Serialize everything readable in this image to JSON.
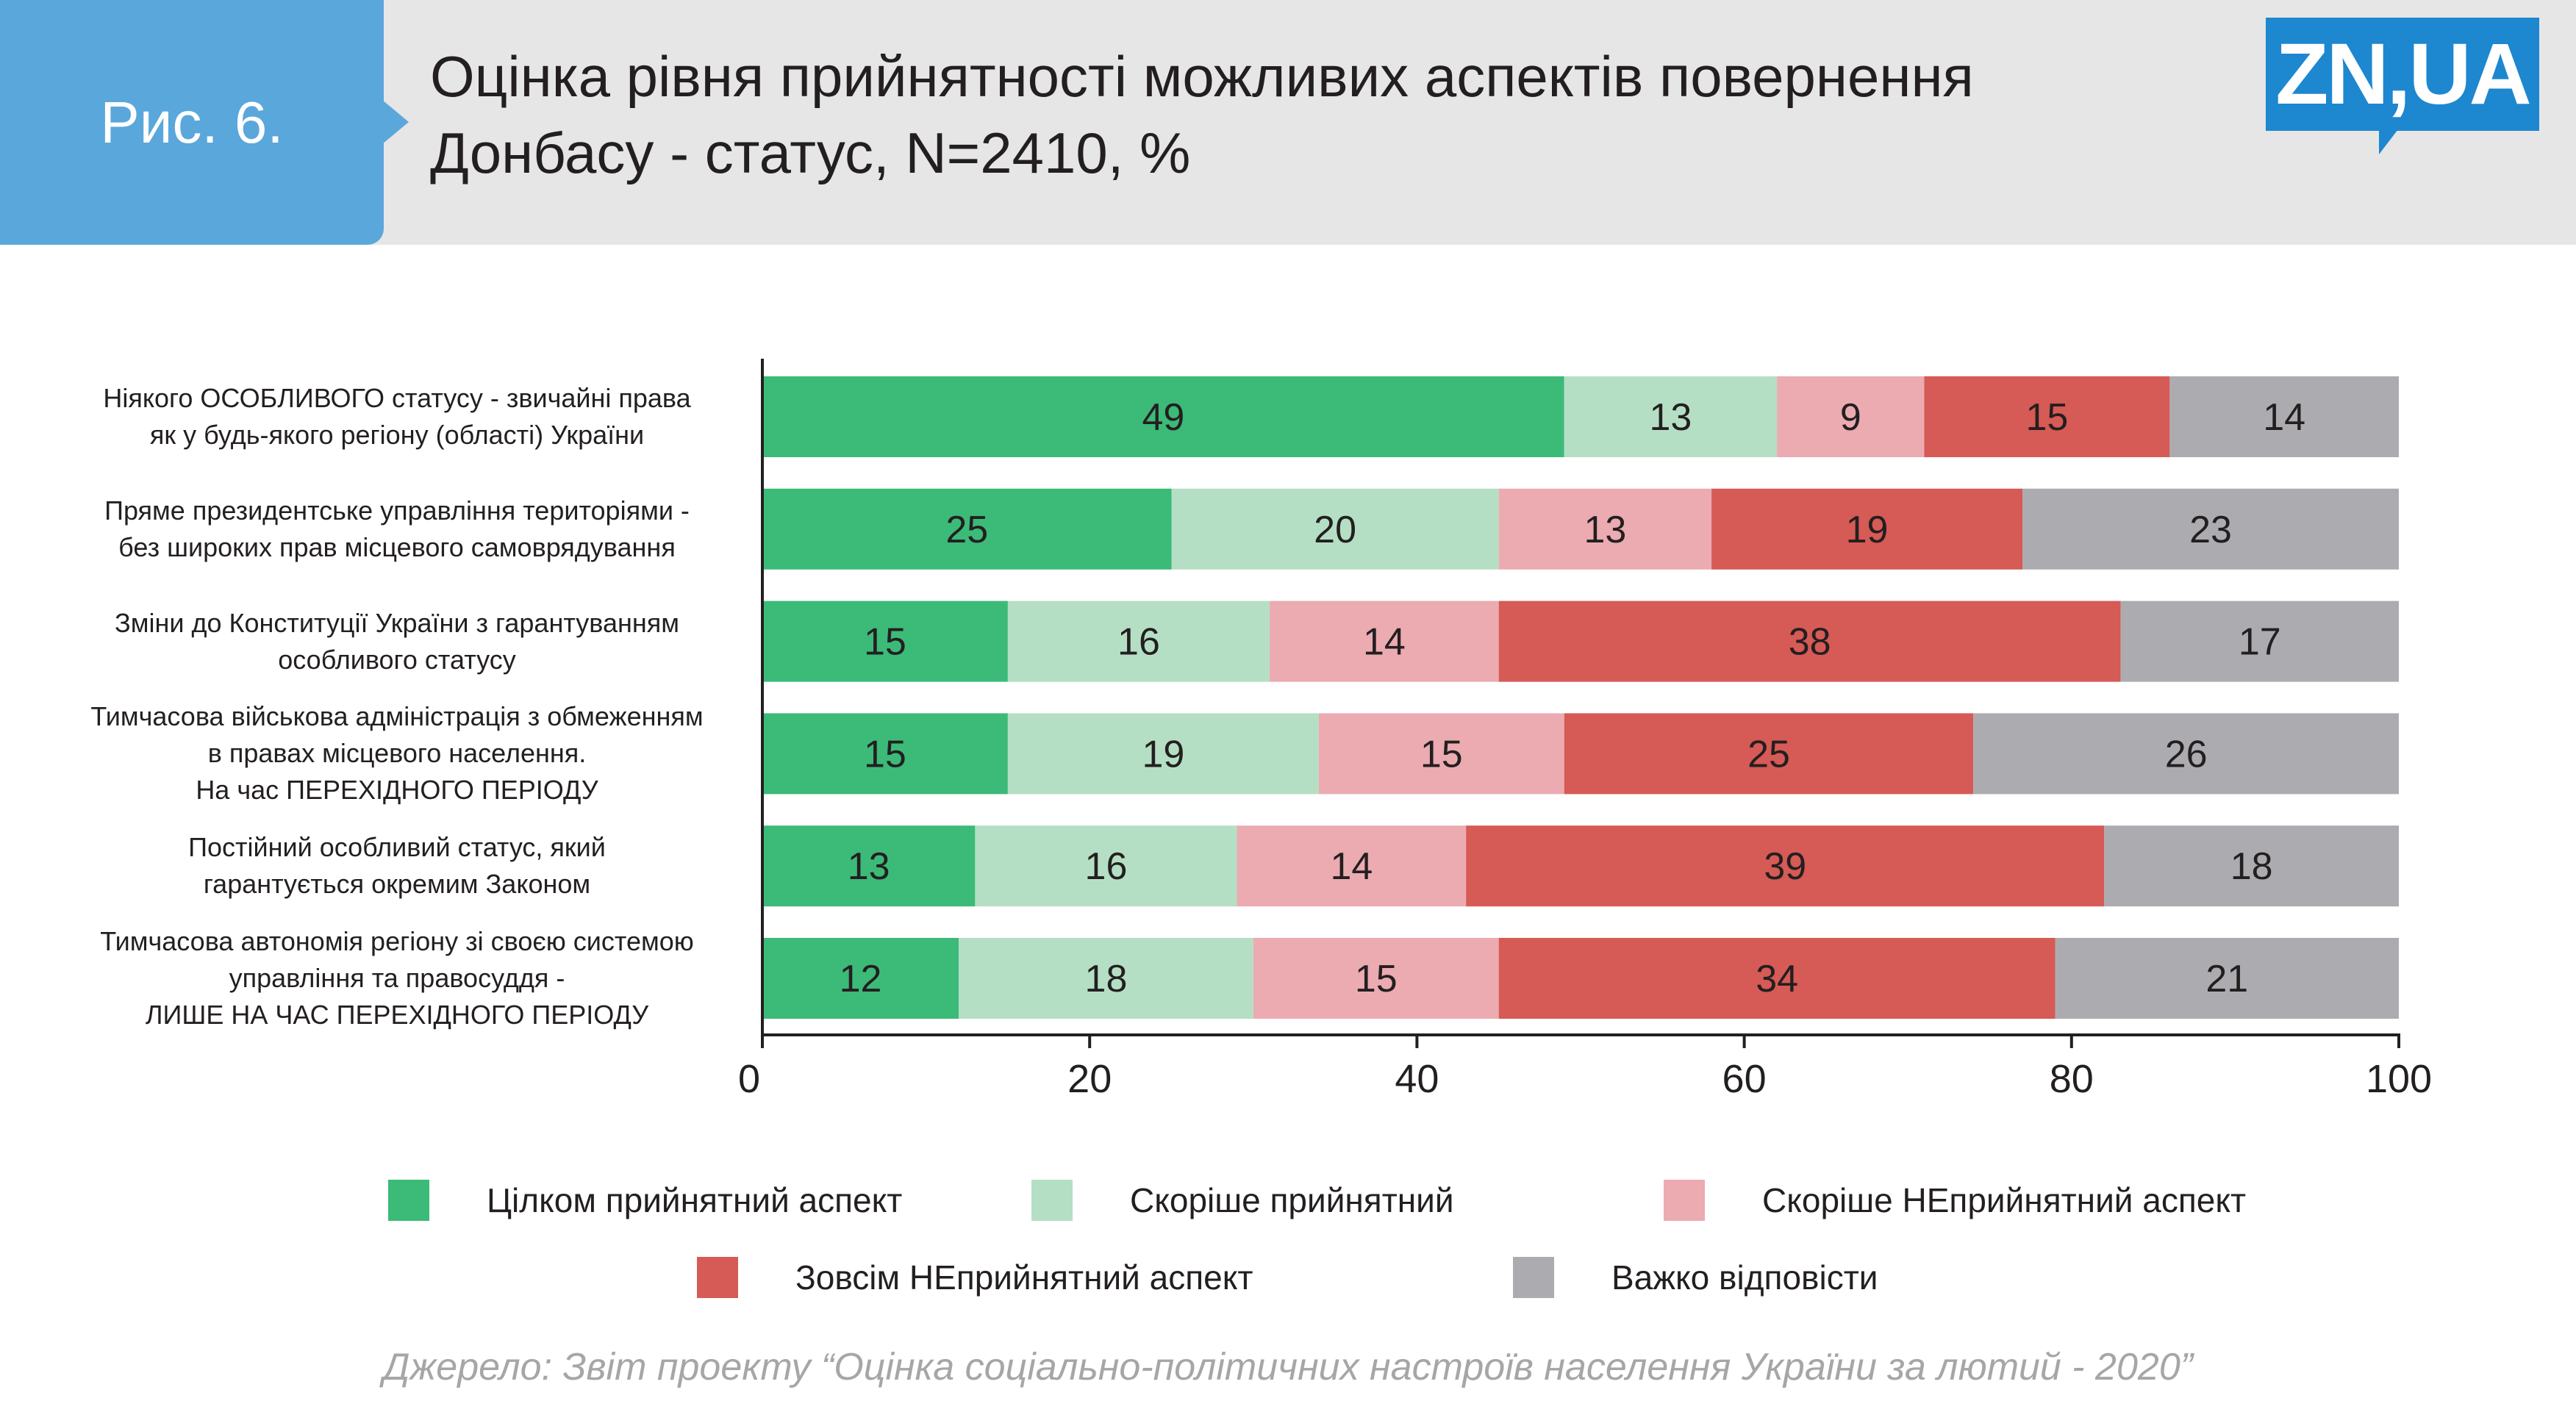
{
  "header": {
    "figure_label": "Рис. 6.",
    "title_line1": "Оцінка рівня прийнятності можливих аспектів повернення",
    "title_line2": "Донбасу - статус, N=2410, %",
    "logo_text": "ZN,UA"
  },
  "chart_data": {
    "type": "bar",
    "orientation": "horizontal",
    "stacked": true,
    "categories": [
      [
        "Ніякого ОСОБЛИВОГО статусу - звичайні права",
        "як у будь-якого регіону (області) України"
      ],
      [
        "Пряме президентське управління територіями -",
        "без широких прав місцевого самоврядування"
      ],
      [
        "Зміни до Конституції України з гарантуванням",
        "особливого статусу"
      ],
      [
        "Тимчасова військова адміністрація з обмеженням",
        "в правах місцевого населення.",
        "На час ПЕРЕХІДНОГО ПЕРІОДУ"
      ],
      [
        "Постійний особливий статус, який",
        "гарантується окремим Законом"
      ],
      [
        "Тимчасова автономія регіону зі своєю системою",
        "управління та правосуддя -",
        "ЛИШЕ НА ЧАС ПЕРЕХІДНОГО ПЕРІОДУ"
      ]
    ],
    "series": [
      {
        "name": "Цілком прийнятний аспект",
        "color": "#3cba78",
        "values": [
          49,
          25,
          15,
          15,
          13,
          12
        ]
      },
      {
        "name": "Скоріше прийнятний",
        "color": "#b5dfc4",
        "values": [
          13,
          20,
          16,
          19,
          16,
          18
        ]
      },
      {
        "name": "Скоріше НЕприйнятний аспект",
        "color": "#ebabb1",
        "values": [
          9,
          13,
          14,
          15,
          14,
          15
        ]
      },
      {
        "name": "Зовсім НЕприйнятний аспект",
        "color": "#d65a55",
        "values": [
          15,
          19,
          38,
          25,
          39,
          34
        ]
      },
      {
        "name": "Важко відповісти",
        "color": "#acacb0",
        "values": [
          14,
          23,
          17,
          26,
          18,
          21
        ]
      }
    ],
    "xlim": [
      0,
      100
    ],
    "xticks": [
      0,
      20,
      40,
      60,
      80,
      100
    ],
    "grid": false,
    "legend_position": "bottom"
  },
  "source": "Джерело: Звіт проекту “Оцінка соціально-політичних настроїв населення України за лютий - 2020”"
}
